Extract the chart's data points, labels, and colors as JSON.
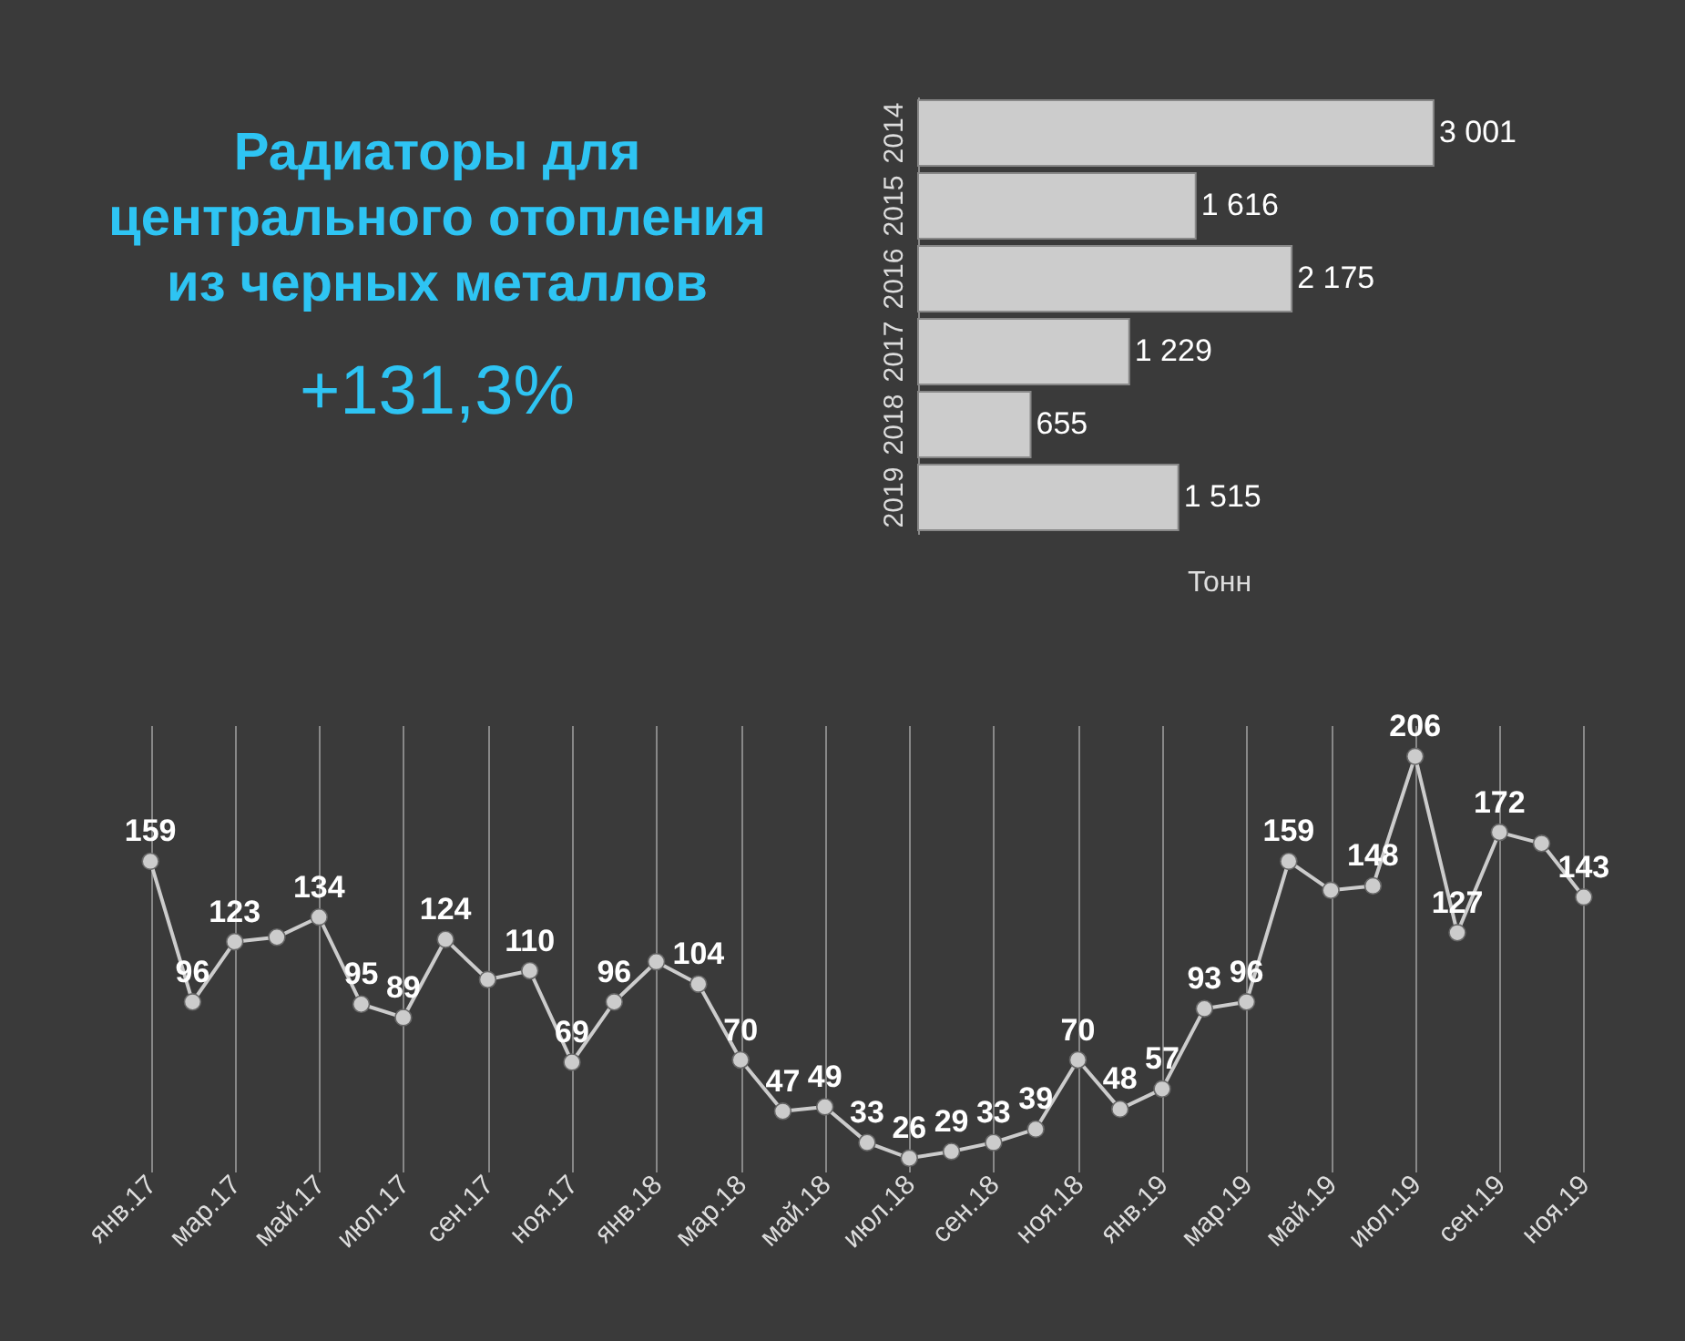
{
  "chart_data": [
    {
      "type": "other",
      "title": "Радиаторы для центрального отопления из черных металлов",
      "annotations": [
        "+131,3%"
      ]
    },
    {
      "type": "bar",
      "orientation": "horizontal",
      "categories": [
        "2014",
        "2015",
        "2016",
        "2017",
        "2018",
        "2019"
      ],
      "values": [
        3001,
        1616,
        2175,
        1229,
        655,
        1515
      ],
      "value_labels": [
        "3 001",
        "1 616",
        "2 175",
        "1 229",
        "655",
        "1 515"
      ],
      "color": "#cccccc",
      "xlabel": "Тонн",
      "tick_labels": "y"
    },
    {
      "type": "line",
      "categories": [
        "янв.17",
        null,
        "мар.17",
        null,
        "май.17",
        null,
        "июл.17",
        null,
        "сен.17",
        null,
        "ноя.17",
        null,
        "янв.18",
        null,
        "мар.18",
        null,
        "май.18",
        null,
        "июл.18",
        null,
        "сен.18",
        null,
        "ноя.18",
        null,
        "янв.19",
        null,
        "мар.19",
        null,
        "май.19",
        null,
        "июл.19",
        null,
        "сен.19",
        null,
        "ноя.19"
      ],
      "values": [
        159,
        96,
        123,
        125,
        134,
        95,
        89,
        124,
        106,
        110,
        69,
        96,
        114,
        104,
        70,
        47,
        49,
        33,
        26,
        29,
        33,
        39,
        70,
        48,
        57,
        93,
        96,
        159,
        146,
        148,
        206,
        127,
        172,
        167,
        143
      ],
      "value_labels": [
        "159",
        "96",
        "123",
        null,
        "134",
        "95",
        "89",
        "124",
        null,
        "110",
        "69",
        "96",
        null,
        "104",
        "70",
        "47",
        "49",
        "33",
        "26",
        "29",
        "33",
        "39",
        "70",
        "48",
        "57",
        "93",
        "96",
        "159",
        null,
        "148",
        "206",
        "127",
        "172",
        null,
        "143"
      ],
      "color": "#cccccc",
      "marker": "circle",
      "grid": "x",
      "tick_labels": "x"
    }
  ]
}
